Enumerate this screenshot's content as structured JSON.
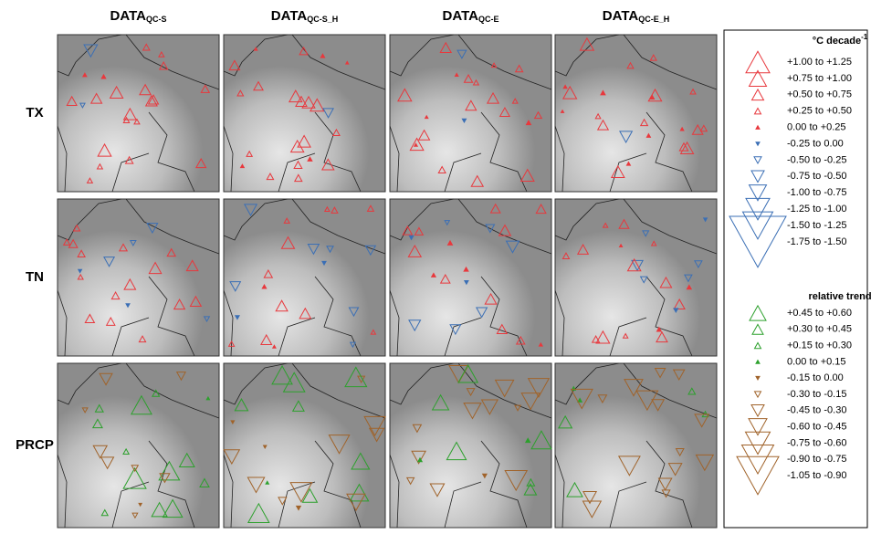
{
  "headers": [
    {
      "main": "DATA",
      "sub": "QC-S"
    },
    {
      "main": "DATA",
      "sub": "QC-S_H"
    },
    {
      "main": "DATA",
      "sub": "QC-E"
    },
    {
      "main": "DATA",
      "sub": "QC-E_H"
    }
  ],
  "rows": [
    "TX",
    "TN",
    "PRCP"
  ],
  "legend": {
    "temperature_title": {
      "main": "°C decade",
      "sup": "-1"
    },
    "temperature_items": [
      "+1.00 to +1.25",
      "+0.75 to +1.00",
      "+0.50 to +0.75",
      "+0.25 to +0.50",
      "0.00 to +0.25",
      "-0.25 to  0.00",
      "-0.50 to -0.25",
      "-0.75 to -0.50",
      "-1.00 to -0.75",
      "-1.25 to -1.00",
      "-1.50 to -1.25",
      "-1.75 to -1.50"
    ],
    "precip_title": "relative trend",
    "precip_items": [
      "+0.45 to +0.60",
      "+0.30 to +0.45",
      "+0.15 to +0.30",
      "0.00 to +0.15",
      "-0.15 to  0.00",
      "-0.30 to -0.15",
      "-0.45 to -0.30",
      "-0.60 to -0.45",
      "-0.75 to -0.60",
      "-0.90 to -0.75",
      "-1.05 to -0.90"
    ]
  }
}
